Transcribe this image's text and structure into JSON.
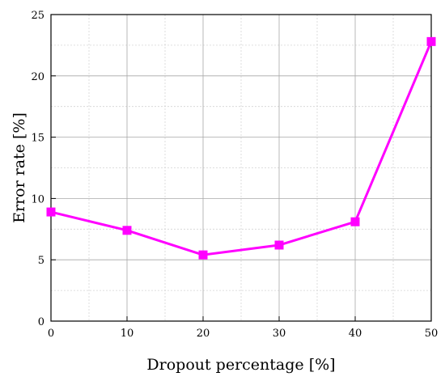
{
  "chart_data": {
    "type": "line",
    "title": "",
    "xlabel": "Dropout percentage [%]",
    "ylabel": "Error rate [%]",
    "xlim": [
      0,
      50
    ],
    "ylim": [
      0,
      25
    ],
    "xticks": [
      0,
      10,
      20,
      30,
      40,
      50
    ],
    "yticks": [
      0,
      5,
      10,
      15,
      20,
      25
    ],
    "x_tick_labels": [
      "0",
      "10",
      "20",
      "30",
      "40",
      "50"
    ],
    "y_tick_labels": [
      "0",
      "5",
      "10",
      "15",
      "20",
      "25"
    ],
    "grid": true,
    "minor_grid": true,
    "series": [
      {
        "x": [
          0,
          10,
          20,
          30,
          40,
          50
        ],
        "y": [
          8.9,
          7.4,
          5.4,
          6.2,
          8.1,
          22.8
        ],
        "color": "#ff00ff",
        "marker": "square"
      }
    ]
  }
}
